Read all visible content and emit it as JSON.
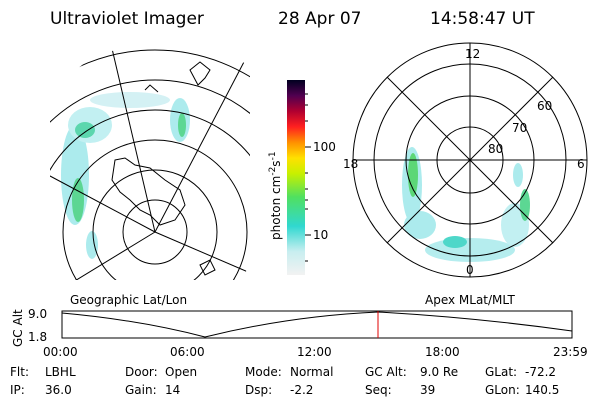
{
  "header": {
    "instrument": "Ultraviolet Imager",
    "date": "28 Apr 07",
    "time": "14:58:47 UT"
  },
  "colorbar": {
    "label": "photon cm",
    "exp1": "-2",
    "mid": "s",
    "exp2": "-1",
    "ticks": [
      "100",
      "10"
    ]
  },
  "left_panel": {
    "label": "Geographic Lat/Lon"
  },
  "right_panel": {
    "label": "Apex MLat/MLT",
    "mlt": [
      "12",
      "18",
      "6",
      "0"
    ],
    "mlat": [
      "60",
      "70",
      "80"
    ]
  },
  "altitude": {
    "label": "GC Alt",
    "yticks": [
      "9.0",
      "1.8"
    ],
    "xticks": [
      "00:00",
      "06:00",
      "12:00",
      "18:00",
      "23:59"
    ]
  },
  "footer": [
    [
      "Flt:",
      "LBHL"
    ],
    [
      "IP:",
      "36.0"
    ],
    [
      "Door:",
      "Open"
    ],
    [
      "Gain:",
      "14"
    ],
    [
      "Mode:",
      "Normal"
    ],
    [
      "Dsp:",
      "-2.2"
    ],
    [
      "GC Alt:",
      "9.0 Re"
    ],
    [
      "Seq:",
      "39"
    ],
    [
      "GLat:",
      "-72.2"
    ],
    [
      "GLon:",
      "140.5"
    ]
  ]
}
